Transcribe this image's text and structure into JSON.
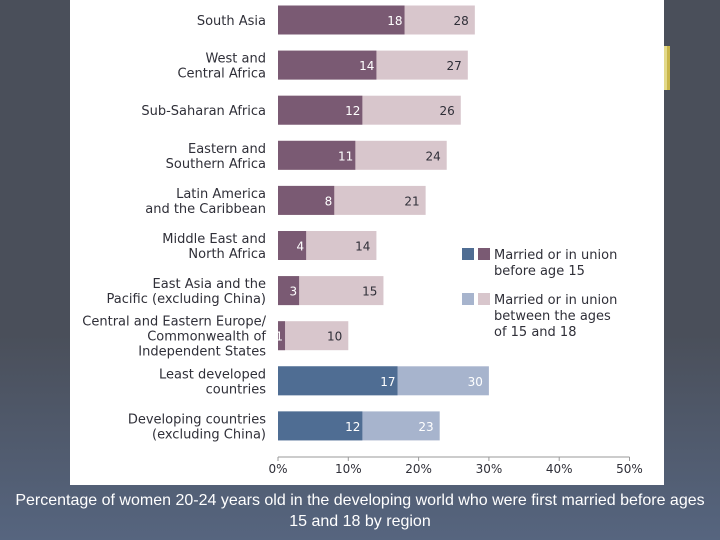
{
  "caption": "Percentage of women 20-24 years old in the developing world who were first married before ages 15 and 18 by region",
  "colors": {
    "region_under15": "#7a5a73",
    "region_15to18": "#d8c6cc",
    "summary_under15": "#4f6d93",
    "summary_15to18": "#a7b4cd",
    "axis": "#9a9a9a",
    "label_text": "#2f2f38",
    "summary_label_text": "#ffffff"
  },
  "chart_data": {
    "type": "bar",
    "orientation": "horizontal",
    "stacked": true,
    "categories": [
      [
        "South Asia"
      ],
      [
        "West and",
        "Central Africa"
      ],
      [
        "Sub-Saharan Africa"
      ],
      [
        "Eastern and",
        "Southern Africa"
      ],
      [
        "Latin America",
        "and the Caribbean"
      ],
      [
        "Middle East and",
        "North Africa"
      ],
      [
        "East Asia and the",
        "Pacific (excluding China)"
      ],
      [
        "Central and Eastern Europe/",
        "Commonwealth of",
        "Independent States"
      ],
      [
        "Least developed",
        "countries"
      ],
      [
        "Developing countries",
        "(excluding China)"
      ]
    ],
    "group": [
      "region",
      "region",
      "region",
      "region",
      "region",
      "region",
      "region",
      "region",
      "summary",
      "summary"
    ],
    "series": [
      {
        "values": [
          18,
          14,
          12,
          11,
          8,
          4,
          3,
          1,
          17,
          12
        ]
      },
      {
        "values": [
          28,
          27,
          26,
          24,
          21,
          14,
          15,
          10,
          30,
          23
        ]
      }
    ],
    "xlim": [
      0,
      50
    ],
    "xticks": [
      "0%",
      "10%",
      "20%",
      "30%",
      "40%",
      "50%"
    ],
    "legend": [
      {
        "lines": [
          "Married or in union",
          "before age 15"
        ]
      },
      {
        "lines": [
          "Married or in union",
          "between the ages",
          "of 15 and 18"
        ]
      }
    ],
    "legend_placement": "right, middle"
  }
}
